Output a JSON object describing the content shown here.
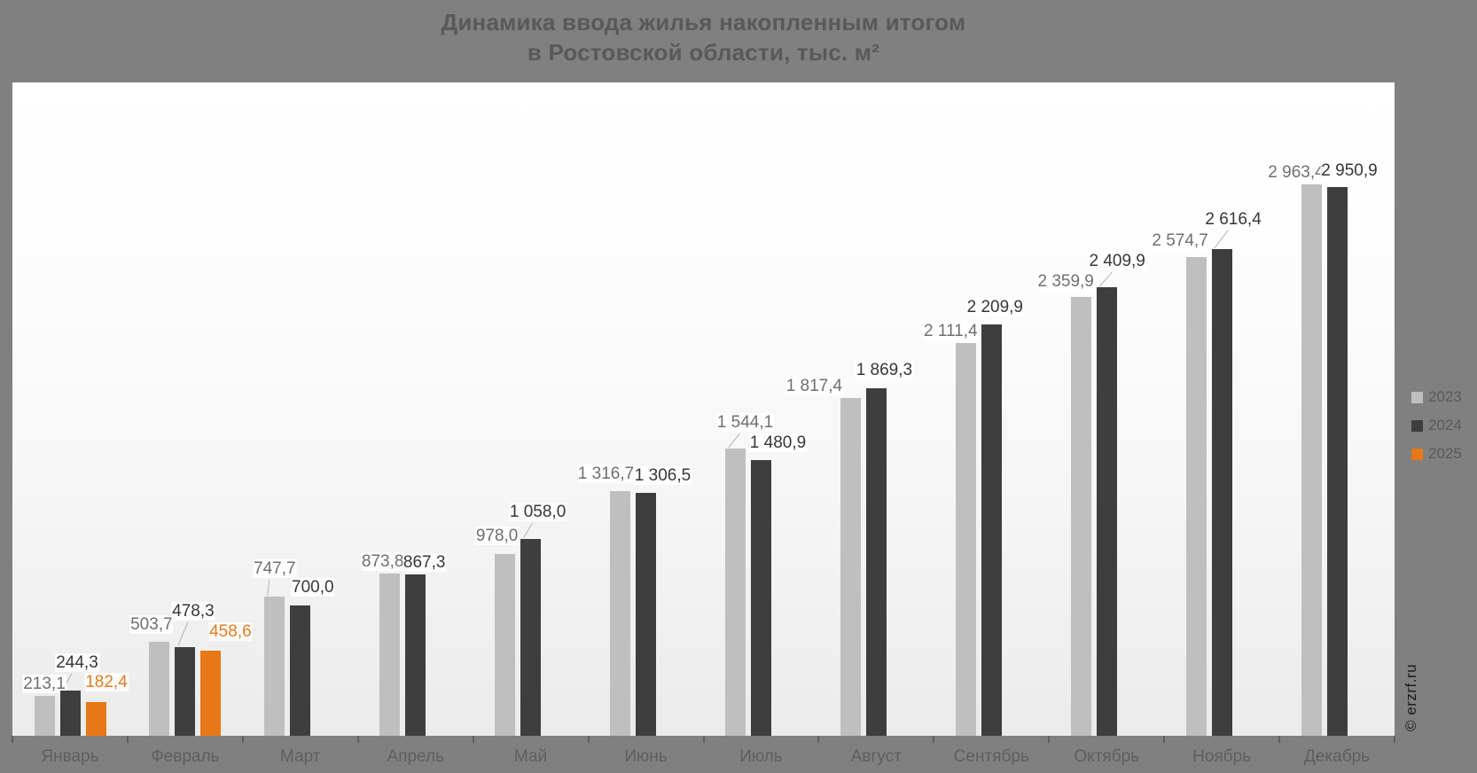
{
  "title": {
    "line1": "Динамика ввода жилья накопленным итогом",
    "line2": "в Ростовской области, тыс. м²"
  },
  "watermark": "© erzrf.ru",
  "colors": {
    "background": "#808080",
    "plot_background_top": "#ffffff",
    "plot_background_bottom": "#ebebeb",
    "title_text": "#59595b",
    "axis_label": "#5e5e5e",
    "tick": "#5f5f5f",
    "legend_text": "#595959",
    "leader_line": "#b3b3b3",
    "series_2023": "#bfbfbf",
    "series_2024": "#3e3e3e",
    "series_2025": "#e67817"
  },
  "chart_data": {
    "type": "bar",
    "title": "Динамика ввода жилья накопленным итогом в Ростовской области, тыс. м²",
    "categories": [
      "Январь",
      "Февраль",
      "Март",
      "Апрель",
      "Май",
      "Июнь",
      "Июль",
      "Август",
      "Сентябрь",
      "Октябрь",
      "Ноябрь",
      "Декабрь"
    ],
    "series": [
      {
        "name": "2023",
        "color": "#bfbfbf",
        "label_color": "#6f6f6f",
        "values": [
          213.1,
          503.7,
          747.7,
          873.8,
          978.0,
          1316.7,
          1544.1,
          1817.4,
          2111.4,
          2359.9,
          2574.7,
          2963.4
        ]
      },
      {
        "name": "2024",
        "color": "#3e3e3e",
        "label_color": "#363636",
        "values": [
          244.3,
          478.3,
          700.0,
          867.3,
          1058.0,
          1306.5,
          1480.9,
          1869.3,
          2209.9,
          2409.9,
          2616.4,
          2950.9
        ]
      },
      {
        "name": "2025",
        "color": "#e67817",
        "label_color": "#e67d1d",
        "values": [
          182.4,
          458.6,
          null,
          null,
          null,
          null,
          null,
          null,
          null,
          null,
          null,
          null
        ]
      }
    ],
    "value_labels": true,
    "decimal_separator": ",",
    "thousands_separator": " ",
    "decimals": 1,
    "ylim": [
      0,
      3500
    ],
    "grid": false,
    "y_axis_visible": false,
    "legend_position": "right",
    "label_hints": {
      "0-1": [
        8,
        -18,
        1
      ],
      "0-2": [
        12,
        -9,
        0
      ],
      "1-0": [
        -9,
        -6,
        0
      ],
      "1-1": [
        9,
        -27,
        1
      ],
      "1-2": [
        22,
        -8,
        0
      ],
      "2-0": [
        0,
        -18,
        1
      ],
      "2-1": [
        14,
        -7,
        0
      ],
      "3-0": [
        -8,
        0,
        0
      ],
      "3-1": [
        10,
        0,
        0
      ],
      "4-0": [
        -9,
        -7,
        0
      ],
      "4-1": [
        8,
        -17,
        1
      ],
      "5-0": [
        -16,
        -6,
        0
      ],
      "5-1": [
        19,
        -6,
        0
      ],
      "6-0": [
        11,
        -16,
        1
      ],
      "6-1": [
        19,
        -6,
        0
      ],
      "7-0": [
        -41,
        0,
        0
      ],
      "7-1": [
        9,
        -7,
        0
      ],
      "8-0": [
        -17,
        0,
        0
      ],
      "8-1": [
        4,
        -6,
        0
      ],
      "9-0": [
        -17,
        -4,
        0
      ],
      "9-1": [
        12,
        -16,
        1
      ],
      "10-0": [
        -18,
        -5,
        0
      ],
      "10-1": [
        13,
        -20,
        1
      ],
      "11-0": [
        -17,
        0,
        0
      ],
      "11-1": [
        14,
        -5,
        0
      ]
    }
  }
}
